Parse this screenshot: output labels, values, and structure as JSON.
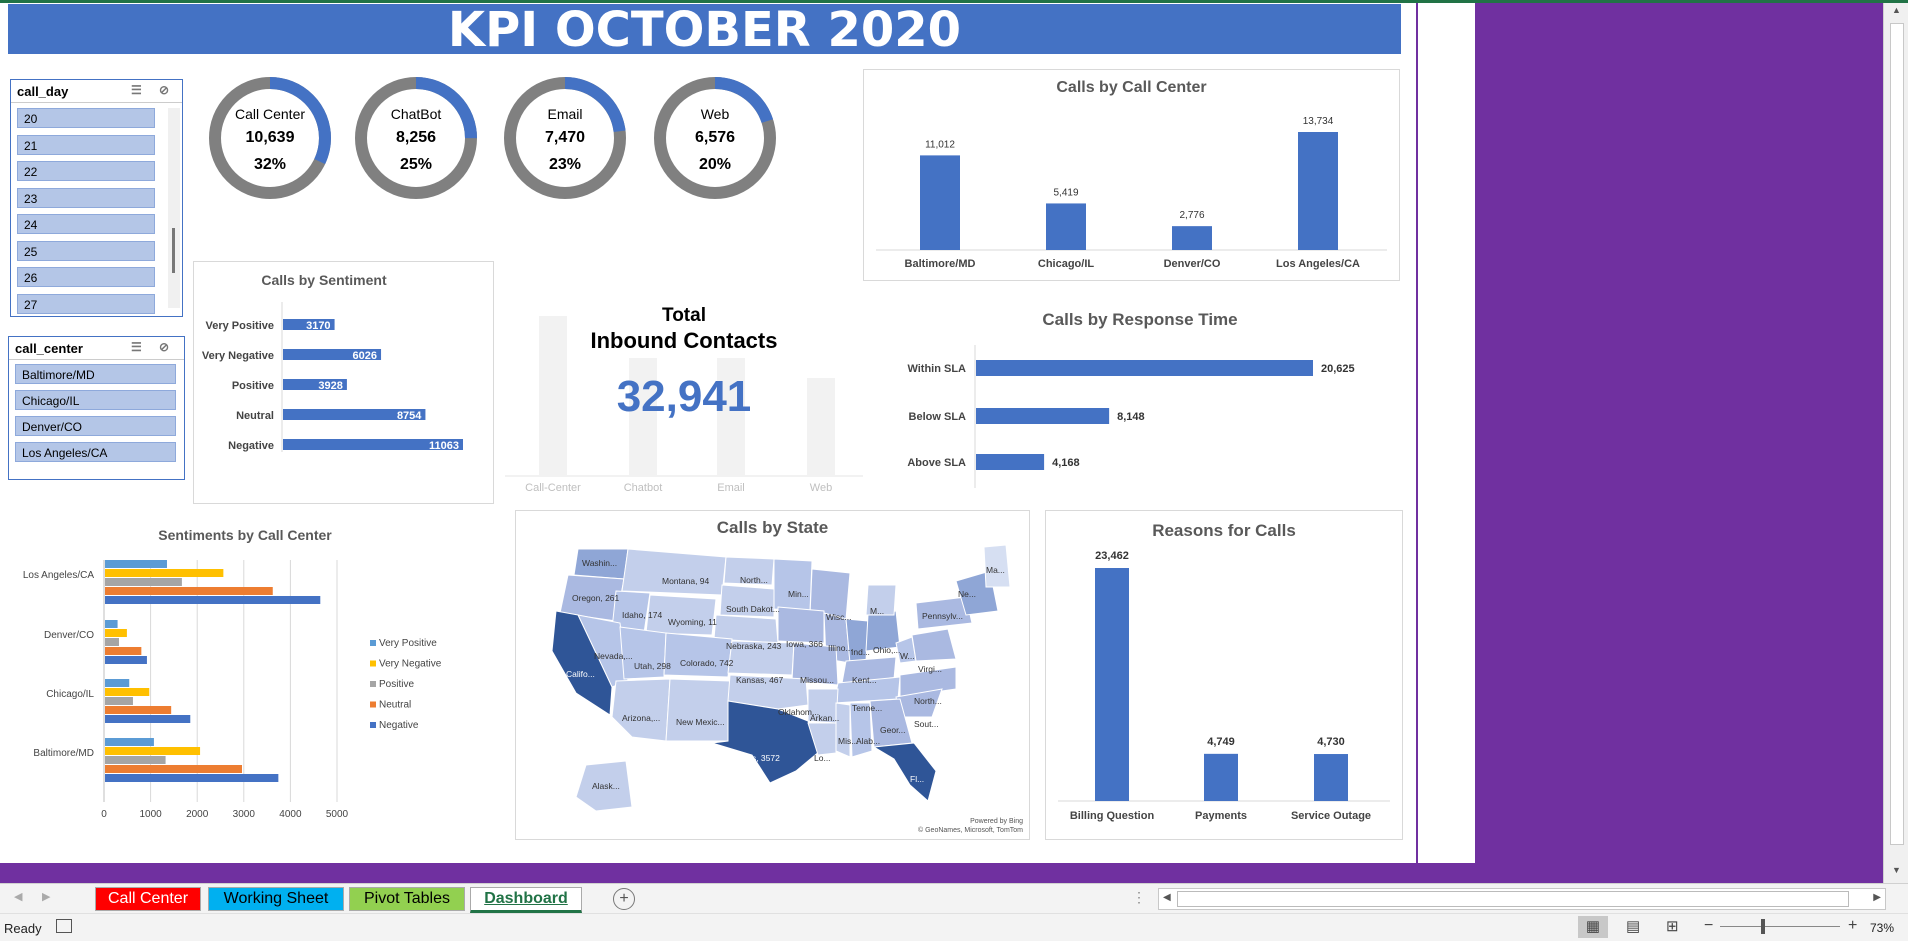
{
  "title": "KPI OCTOBER 2020",
  "colors": {
    "accent": "#4472c4",
    "purple": "#7030a0",
    "gray": "#808080"
  },
  "slicer_day": {
    "header": "call_day",
    "items": [
      "20",
      "21",
      "22",
      "23",
      "24",
      "25",
      "26",
      "27"
    ]
  },
  "slicer_center": {
    "header": "call_center",
    "items": [
      "Baltimore/MD",
      "Chicago/IL",
      "Denver/CO",
      "Los Angeles/CA"
    ]
  },
  "donuts": [
    {
      "label": "Call Center",
      "value": "10,639",
      "pct": "32%",
      "fraction": 0.32
    },
    {
      "label": "ChatBot",
      "value": "8,256",
      "pct": "25%",
      "fraction": 0.25
    },
    {
      "label": "Email",
      "value": "7,470",
      "pct": "23%",
      "fraction": 0.23
    },
    {
      "label": "Web",
      "value": "6,576",
      "pct": "20%",
      "fraction": 0.2
    }
  ],
  "total": {
    "label_line1": "Total",
    "label_line2": "Inbound Contacts",
    "value": "32,941",
    "categories": [
      "Call-Center",
      "Chatbot",
      "Email",
      "Web"
    ]
  },
  "chart_data": [
    {
      "type": "bar",
      "title": "Calls by Call Center",
      "categories": [
        "Baltimore/MD",
        "Chicago/IL",
        "Denver/CO",
        "Los Angeles/CA"
      ],
      "values": [
        11012,
        5419,
        2776,
        13734
      ],
      "labels": [
        "11,012",
        "5,419",
        "2,776",
        "13,734"
      ]
    },
    {
      "type": "bar",
      "orientation": "horizontal",
      "title": "Calls by Sentiment",
      "categories": [
        "Very Positive",
        "Very Negative",
        "Positive",
        "Neutral",
        "Negative"
      ],
      "values": [
        3170,
        6026,
        3928,
        8754,
        11063
      ],
      "labels": [
        "3170",
        "6026",
        "3928",
        "8754",
        "11063"
      ]
    },
    {
      "type": "bar",
      "orientation": "horizontal",
      "title": "Calls by Response Time",
      "categories": [
        "Within SLA",
        "Below SLA",
        "Above SLA"
      ],
      "values": [
        20625,
        8148,
        4168
      ],
      "labels": [
        "20,625",
        "8,148",
        "4,168"
      ]
    },
    {
      "type": "bar",
      "orientation": "horizontal",
      "title": "Sentiments by Call Center",
      "categories": [
        "Los Angeles/CA",
        "Denver/CO",
        "Chicago/IL",
        "Baltimore/MD"
      ],
      "series": [
        {
          "name": "Very Positive",
          "color": "#5b9bd5",
          "values": [
            1330,
            270,
            520,
            1050
          ]
        },
        {
          "name": "Very Negative",
          "color": "#ffc000",
          "values": [
            2540,
            470,
            950,
            2040
          ]
        },
        {
          "name": "Positive",
          "color": "#a5a5a5",
          "values": [
            1650,
            300,
            600,
            1300
          ]
        },
        {
          "name": "Neutral",
          "color": "#ed7d31",
          "values": [
            3600,
            780,
            1420,
            2940
          ]
        },
        {
          "name": "Negative",
          "color": "#4472c4",
          "values": [
            4620,
            900,
            1830,
            3720
          ]
        }
      ],
      "xticks": [
        "0",
        "1000",
        "2000",
        "3000",
        "4000",
        "5000"
      ],
      "xlim": [
        0,
        5000
      ],
      "legend": "right"
    },
    {
      "type": "bar",
      "title": "Reasons for Calls",
      "categories": [
        "Billing Question",
        "Payments",
        "Service Outage"
      ],
      "values": [
        23462,
        4749,
        4730
      ],
      "labels": [
        "23,462",
        "4,749",
        "4,730"
      ]
    }
  ],
  "map": {
    "title": "Calls by State",
    "states": [
      {
        "label": "Washin..."
      },
      {
        "label": "Oregon, 261"
      },
      {
        "label": "Montana, 94"
      },
      {
        "label": "North..."
      },
      {
        "label": "Idaho, 174"
      },
      {
        "label": "Wyoming, 11"
      },
      {
        "label": "South Dakot..."
      },
      {
        "label": "Min..."
      },
      {
        "label": "Wisc..."
      },
      {
        "label": "Nevada,..."
      },
      {
        "label": "Utah, 298"
      },
      {
        "label": "Nebraska, 243"
      },
      {
        "label": "Iowa, 366"
      },
      {
        "label": "Califo..."
      },
      {
        "label": "Colorado, 742"
      },
      {
        "label": "Illino..."
      },
      {
        "label": "Ind..."
      },
      {
        "label": "Ohio,..."
      },
      {
        "label": "Kansas, 467"
      },
      {
        "label": "Missou..."
      },
      {
        "label": "Kent..."
      },
      {
        "label": "W..."
      },
      {
        "label": "Virgi..."
      },
      {
        "label": "Arizona,..."
      },
      {
        "label": "New Mexic..."
      },
      {
        "label": "Oklahom..."
      },
      {
        "label": "Tenne..."
      },
      {
        "label": "North..."
      },
      {
        "label": "Arkan..."
      },
      {
        "label": "Sout..."
      },
      {
        "label": "Texas, 3572"
      },
      {
        "label": "Mis..."
      },
      {
        "label": "Alab..."
      },
      {
        "label": "Geor..."
      },
      {
        "label": "Lo..."
      },
      {
        "label": "Fl..."
      },
      {
        "label": "Alask..."
      },
      {
        "label": "Pennsylv..."
      },
      {
        "label": "Ne..."
      },
      {
        "label": "Ma..."
      },
      {
        "label": "M..."
      }
    ],
    "credit_line1": "Powered by Bing",
    "credit_line2": "© GeoNames, Microsoft, TomTom"
  },
  "tabs": [
    {
      "label": "Call Center",
      "bg": "#ff0000",
      "fg": "#ffffff"
    },
    {
      "label": "Working Sheet",
      "bg": "#00b0f0",
      "fg": "#000000"
    },
    {
      "label": "Pivot Tables",
      "bg": "#92d050",
      "fg": "#000000"
    },
    {
      "label": "Dashboard",
      "bg": "#ffffff",
      "fg": "#217346"
    }
  ],
  "status": {
    "ready": "Ready",
    "zoom": "73%",
    "minus": "−",
    "plus": "+"
  }
}
